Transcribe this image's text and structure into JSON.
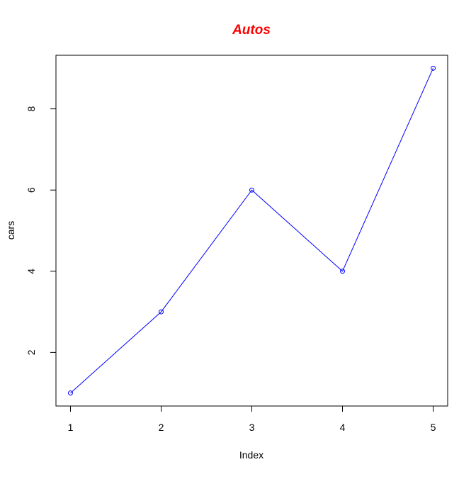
{
  "chart_data": {
    "type": "line",
    "title": "Autos",
    "xlabel": "Index",
    "ylabel": "cars",
    "x": [
      1,
      2,
      3,
      4,
      5
    ],
    "values": [
      1,
      3,
      6,
      4,
      9
    ],
    "xlim": [
      0.84,
      5.16
    ],
    "ylim": [
      0.68,
      9.32
    ],
    "xticks": [
      1,
      2,
      3,
      4,
      5
    ],
    "yticks": [
      2,
      4,
      6,
      8
    ],
    "grid": false,
    "markers": "open-circle",
    "colors": {
      "title": "#ff0000",
      "line": "#0000ff",
      "points": "#0000ff",
      "axes": "#000000"
    }
  }
}
